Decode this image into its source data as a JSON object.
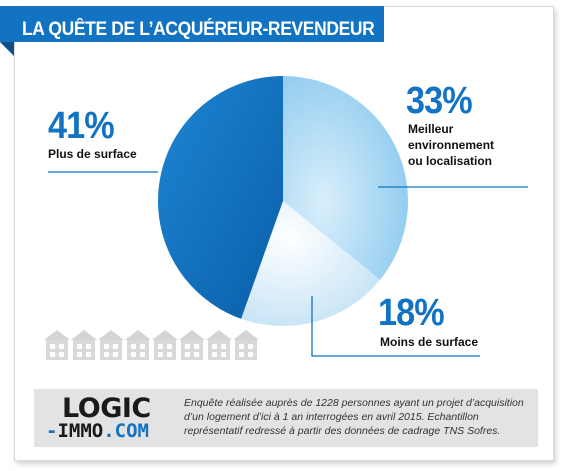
{
  "header": {
    "title": "LA QUÊTE DE L’ACQUÉREUR-REVENDEUR"
  },
  "chart_data": {
    "type": "pie",
    "categories": [
      "Meilleur environnement ou localisation",
      "Moins de surface",
      "Plus de surface"
    ],
    "values": [
      33,
      18,
      41
    ],
    "data_labels": [
      "33%",
      "18%",
      "41%"
    ],
    "legend": "none",
    "colors": [
      "#8cc9ee",
      "#c3e3f6",
      "#0f6bbd"
    ]
  },
  "labels": {
    "plus": {
      "pct": "41%",
      "text": "Plus de surface"
    },
    "meilleur": {
      "pct": "33%",
      "lines": [
        "Meilleur",
        "environnement",
        "ou localisation"
      ]
    },
    "moins": {
      "pct": "18%",
      "text": "Moins de surface"
    }
  },
  "footer": {
    "logo": {
      "top": "LOGIC",
      "dash": "-",
      "immo": "IMMO",
      "dom": ".COM"
    },
    "note": "Enquête réalisée auprès de 1228 personnes ayant un projet d’acquisition d’un logement d’ici à 1 an interrogées en avril 2015. Echantillon représentatif redressé à partir des données de cadrage TNS Sofres."
  },
  "colors": {
    "accent": "#1273c2",
    "accent_dark": "#0c4f8a",
    "footer_bg": "#e3e3e3"
  }
}
